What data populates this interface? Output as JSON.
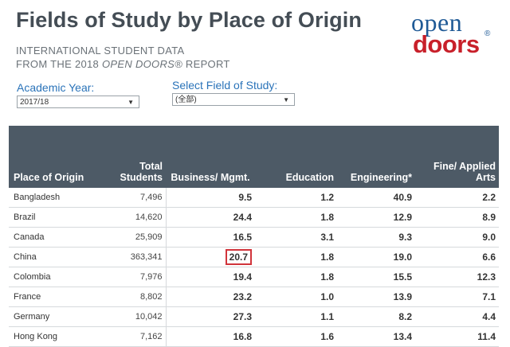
{
  "header": {
    "title": "Fields of Study by Place of Origin",
    "subtitle_line1": "INTERNATIONAL STUDENT DATA",
    "subtitle_prefix": "FROM THE 2018 ",
    "subtitle_italic": "OPEN DOORS®",
    "subtitle_suffix": " REPORT"
  },
  "logo": {
    "line1": "open",
    "line2": "doors",
    "reg": "®"
  },
  "filters": {
    "year_label": "Academic Year:",
    "year_value": "2017/18",
    "field_label": "Select Field of Study:",
    "field_value": "(全部)",
    "dropdown_arrow": "▼"
  },
  "table": {
    "columns": {
      "place": "Place of Origin",
      "total": "Total Students",
      "business": "Business/ Mgmt.",
      "education": "Education",
      "engineering": "Engineering*",
      "fine_arts": "Fine/ Applied Arts"
    },
    "rows": [
      {
        "place": "Bangladesh",
        "total": "7,496",
        "business": "9.5",
        "education": "1.2",
        "engineering": "40.9",
        "fine_arts": "2.2"
      },
      {
        "place": "Brazil",
        "total": "14,620",
        "business": "24.4",
        "education": "1.8",
        "engineering": "12.9",
        "fine_arts": "8.9"
      },
      {
        "place": "Canada",
        "total": "25,909",
        "business": "16.5",
        "education": "3.1",
        "engineering": "9.3",
        "fine_arts": "9.0"
      },
      {
        "place": "China",
        "total": "363,341",
        "business": "20.7",
        "education": "1.8",
        "engineering": "19.0",
        "fine_arts": "6.6"
      },
      {
        "place": "Colombia",
        "total": "7,976",
        "business": "19.4",
        "education": "1.8",
        "engineering": "15.5",
        "fine_arts": "12.3"
      },
      {
        "place": "France",
        "total": "8,802",
        "business": "23.2",
        "education": "1.0",
        "engineering": "13.9",
        "fine_arts": "7.1"
      },
      {
        "place": "Germany",
        "total": "10,042",
        "business": "27.3",
        "education": "1.1",
        "engineering": "8.2",
        "fine_arts": "4.4"
      },
      {
        "place": "Hong Kong",
        "total": "7,162",
        "business": "16.8",
        "education": "1.6",
        "engineering": "13.4",
        "fine_arts": "11.4"
      }
    ]
  },
  "colors": {
    "header_bg": "#4d5a66",
    "title": "#444d55",
    "label_blue": "#2a73b9",
    "logo_blue": "#1f5a96",
    "logo_red": "#c8202a",
    "highlight": "#d1343b"
  }
}
